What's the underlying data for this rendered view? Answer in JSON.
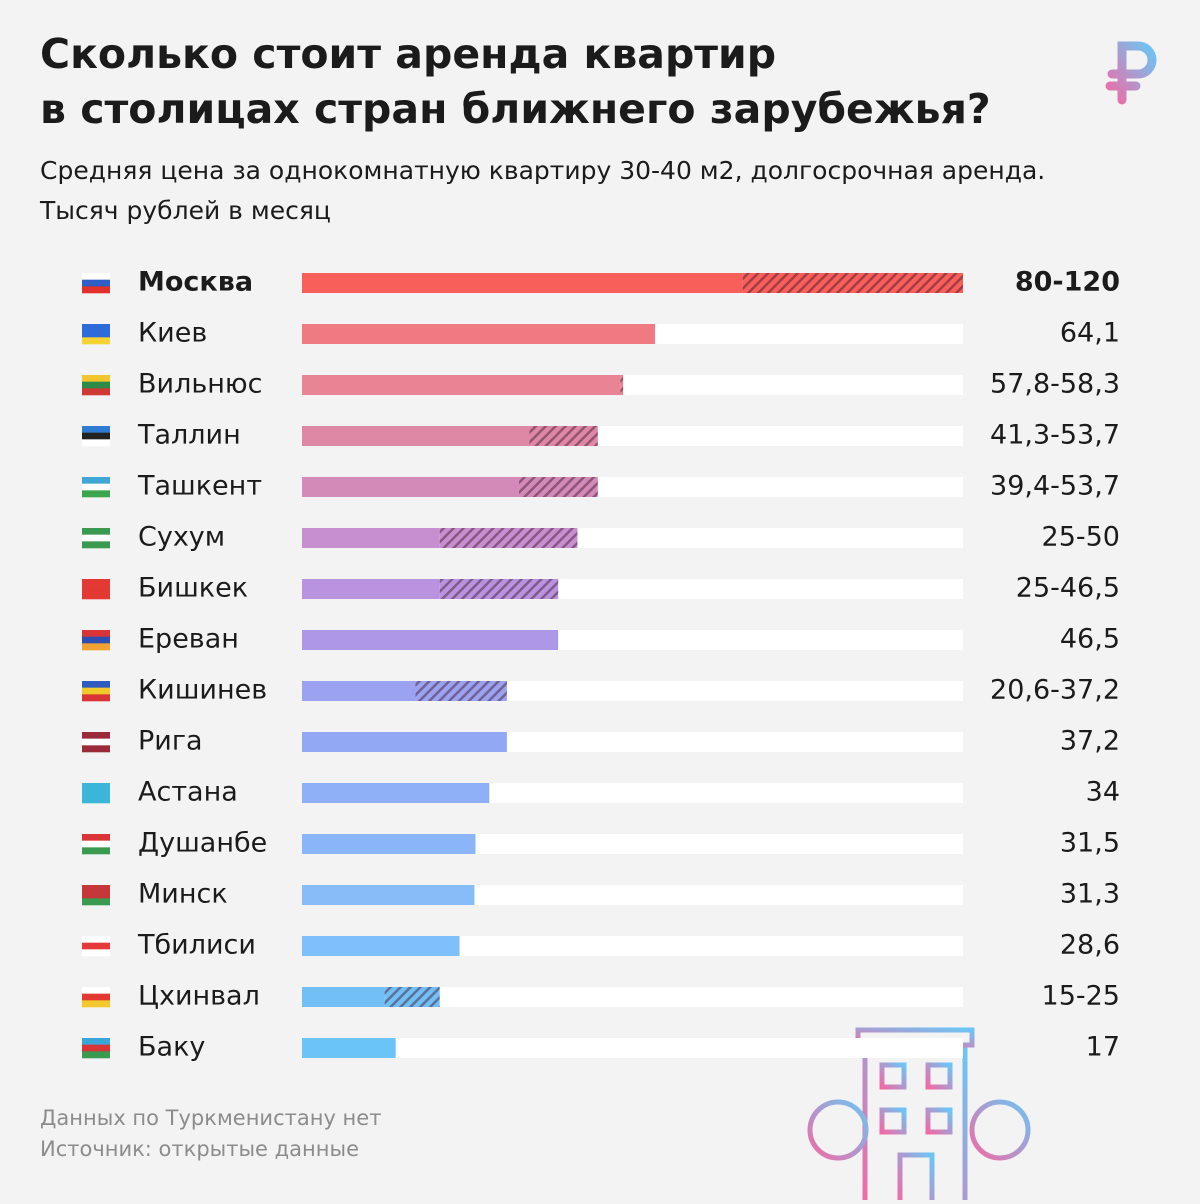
{
  "chart_data": {
    "type": "range-bar",
    "title": "Сколько стоит аренда квартир",
    "title_line2": "в столицах стран ближнего зарубежья?",
    "subtitle": "Средняя цена за однокомнатную квартиру 30-40 м2, долгосрочная аренда.",
    "subtitle_line2": "Тысяч рублей в месяц",
    "categories": [
      "Москва",
      "Киев",
      "Вильнюс",
      "Таллин",
      "Ташкент",
      "Сухум",
      "Бишкек",
      "Ереван",
      "Кишинев",
      "Рига",
      "Астана",
      "Душанбе",
      "Минск",
      "Тбилиси",
      "Цхинвал",
      "Баку"
    ],
    "values": [
      80,
      64.1,
      57.8,
      41.3,
      39.4,
      25,
      25,
      46.5,
      20.6,
      37.2,
      34,
      31.5,
      31.3,
      28.6,
      15,
      17
    ],
    "high": [
      120,
      null,
      58.3,
      53.7,
      53.7,
      50,
      46.5,
      null,
      37.2,
      null,
      null,
      null,
      null,
      null,
      25,
      null
    ],
    "value_labels": [
      "80-120",
      "64,1",
      "57,8-58,3",
      "41,3-53,7",
      "39,4-53,7",
      "25-50",
      "25-46,5",
      "46,5",
      "20,6-37,2",
      "37,2",
      "34",
      "31,5",
      "31,3",
      "28,6",
      "15-25",
      "17"
    ],
    "colors": [
      "#f95f5a",
      "#f07a82",
      "#e98494",
      "#de88a6",
      "#d38ab8",
      "#c78fd0",
      "#b993df",
      "#ad98e8",
      "#9ba2f0",
      "#93a8f4",
      "#8fb0f6",
      "#8ab6f8",
      "#86bcf8",
      "#80c0fa",
      "#72bff5",
      "#6ac4f6"
    ],
    "xlim": [
      0,
      120
    ],
    "notes": [
      "Данных по Туркменистану нет",
      "Источник: открытые данные"
    ]
  }
}
